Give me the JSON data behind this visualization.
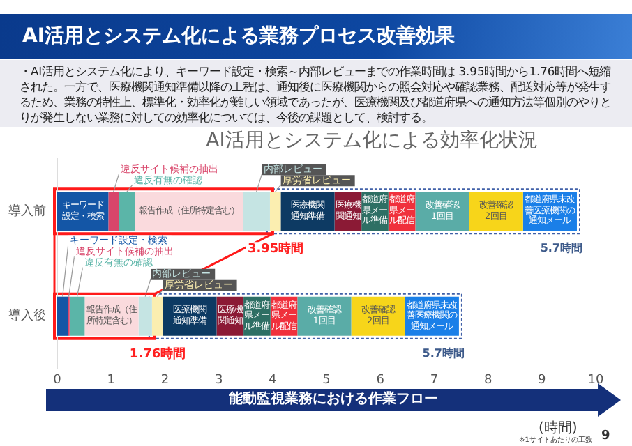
{
  "chart_data": {
    "type": "bar",
    "orientation": "horizontal",
    "stacked": true,
    "title": "AI活用とシステム化による効率化状況",
    "xlabel": "能動監視業務における作業フロー",
    "categories": [
      "導入前",
      "導入後"
    ],
    "xlim": [
      0,
      10
    ],
    "xticks": [
      0,
      1,
      2,
      3,
      4,
      5,
      6,
      7,
      8,
      9,
      10
    ],
    "series": [
      {
        "name": "キーワード設定・検索",
        "color": "#1456a6",
        "values": [
          0.95,
          0.2
        ]
      },
      {
        "name": "違反サイト候補の抽出",
        "color": "#d9456a",
        "values": [
          0.19,
          0.03
        ]
      },
      {
        "name": "違反有無の確認",
        "color": "#5bb5a8",
        "values": [
          0.31,
          0.28
        ]
      },
      {
        "name": "報告作成（住所特定含む）",
        "color": "#fadadd",
        "values": [
          2.0,
          1.0
        ]
      },
      {
        "name": "内部レビュー",
        "color": "#c5e4e3",
        "values": [
          0.5,
          0.25
        ]
      },
      {
        "name": "厚労省レビュー",
        "color": "#fbeeb0",
        "values": [
          0.2,
          0.2
        ]
      },
      {
        "name": "医療機関通知準備",
        "color": "#0d3a63",
        "values": [
          1.0,
          1.0
        ]
      },
      {
        "name": "医療機関通知",
        "color": "#8b1a35",
        "values": [
          0.5,
          0.5
        ]
      },
      {
        "name": "都道府県メール準備",
        "color": "#2e6f64",
        "values": [
          0.5,
          0.5
        ]
      },
      {
        "name": "都道府県メール配信",
        "color": "#f0303c",
        "values": [
          0.5,
          0.5
        ]
      },
      {
        "name": "改善確認1回目",
        "color": "#5aaca7",
        "values": [
          1.0,
          1.0
        ]
      },
      {
        "name": "改善確認2回目",
        "color": "#f7d51a",
        "values": [
          1.0,
          1.0
        ]
      },
      {
        "name": "都道府県未改善医療機関の通知メール",
        "color": "#1a7fe8",
        "values": [
          1.0,
          1.0
        ]
      }
    ],
    "annotations": [
      "AI活用とシステム化による業務プロセス改善効果",
      "・AI活用とシステム化により、キーワード設定・検索～内部レビューまでの作業時間は 3.95時間から1.76時間へ短縮された。一方で、医療機関通知準備以降の工程は、通知後に医療機関からの照会対応や確認業務、配送対応等が発生するため、業務の特性上、標準化・効率化が難しい領域であったが、医療機関及び都道府県への通知方法等個別のやりとりが発生しない業務に対しての効率化については、今後の課題として、検討する。",
      {
        "text": "3.95時間",
        "x": 3.95,
        "y": "導入前"
      },
      {
        "text": "5.7時間",
        "x": 9.65,
        "y": "導入前"
      },
      {
        "text": "1.76時間",
        "x": 1.76,
        "y": "導入後"
      },
      {
        "text": "5.7時間",
        "x": 7.46,
        "y": "導入後"
      },
      "(時間)",
      "※1サイトあたりの工数",
      "9"
    ]
  }
}
